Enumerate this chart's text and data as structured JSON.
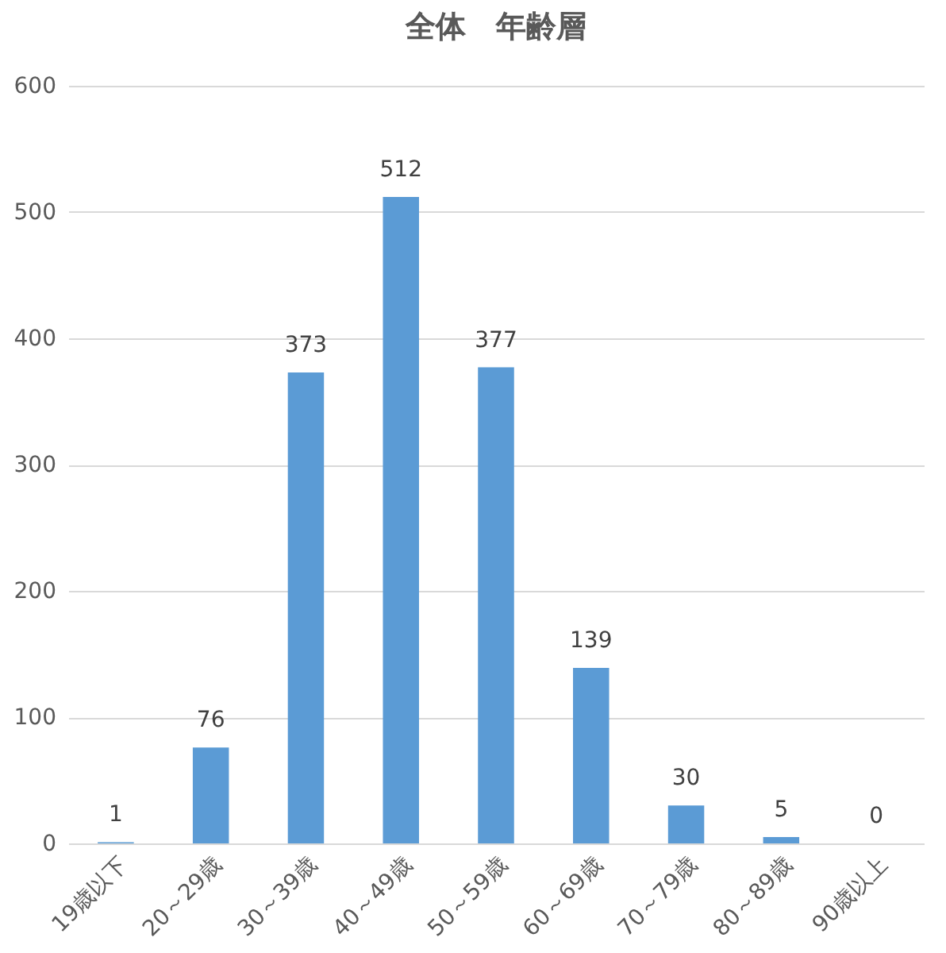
{
  "chart_data": {
    "type": "bar",
    "title": "全体　年齢層",
    "categories": [
      "19歳以下",
      "20～29歳",
      "30～39歳",
      "40～49歳",
      "50～59歳",
      "60～69歳",
      "70～79歳",
      "80～89歳",
      "90歳以上"
    ],
    "values": [
      1,
      76,
      373,
      512,
      377,
      139,
      30,
      5,
      0
    ],
    "color": "#5b9bd5",
    "ylim": [
      0,
      600
    ],
    "yticks": [
      0,
      100,
      200,
      300,
      400,
      500,
      600
    ],
    "grid": "y",
    "data_labels": true
  }
}
